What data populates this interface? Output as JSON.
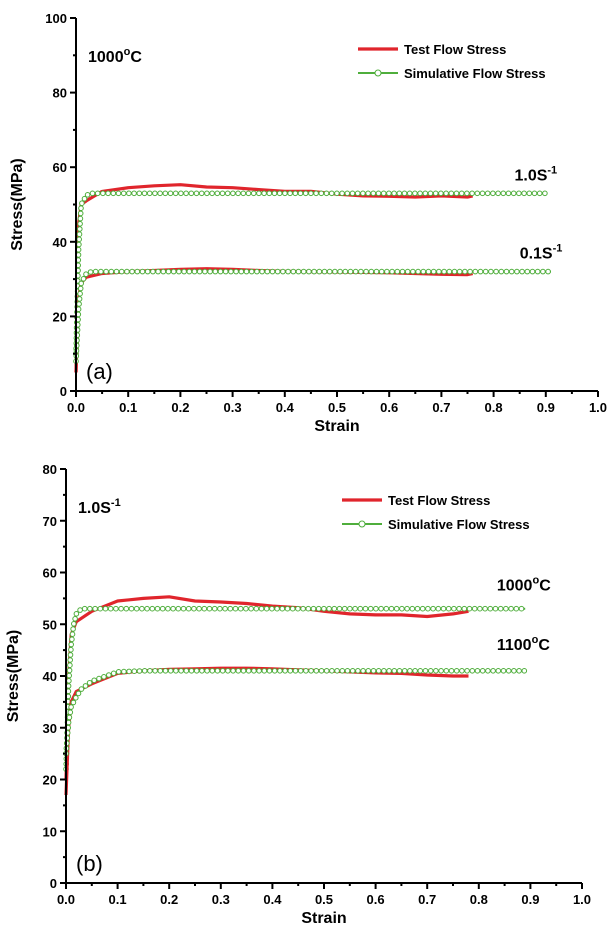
{
  "chart_data": [
    {
      "type": "line",
      "panel_label": "(a)",
      "condition": {
        "main": "1000",
        "sup": "o",
        "tail": "C"
      },
      "xlabel": "Strain",
      "ylabel": "Stress(MPa)",
      "xlim": [
        0.0,
        1.0
      ],
      "ylim": [
        0,
        100
      ],
      "x_ticks": [
        "0.0",
        "0.1",
        "0.2",
        "0.3",
        "0.4",
        "0.5",
        "0.6",
        "0.7",
        "0.8",
        "0.9",
        "1.0"
      ],
      "y_ticks": [
        "0",
        "20",
        "40",
        "60",
        "80",
        "100"
      ],
      "legend": {
        "placement": "top-right",
        "entries": [
          "Test Flow Stress",
          "Simulative Flow Stress"
        ]
      },
      "curve_labels": [
        {
          "main": "1.0S",
          "sup": "-1",
          "x": 0.84,
          "y": 56.5
        },
        {
          "main": "0.1S",
          "sup": "-1",
          "x": 0.85,
          "y": 35.5
        }
      ],
      "series": [
        {
          "name": "Test Flow Stress",
          "x": [
            0.0,
            0.005,
            0.01,
            0.02,
            0.05,
            0.1,
            0.15,
            0.2,
            0.25,
            0.3,
            0.35,
            0.4,
            0.45,
            0.5,
            0.55,
            0.6,
            0.65,
            0.7,
            0.75,
            0.76
          ],
          "y": [
            5,
            45,
            50,
            51,
            53.5,
            54.5,
            55,
            55.3,
            54.7,
            54.5,
            54,
            53.5,
            53.5,
            52.8,
            52.3,
            52.2,
            52,
            52.3,
            52,
            52.3
          ]
        },
        {
          "name": "Simulative Flow Stress",
          "x": [
            0.0,
            0.005,
            0.01,
            0.02,
            0.03,
            0.05,
            0.1,
            0.2,
            0.3,
            0.4,
            0.5,
            0.6,
            0.7,
            0.8,
            0.9
          ],
          "y": [
            10,
            38,
            50,
            52.5,
            53,
            53,
            53,
            53,
            53,
            53,
            53,
            53,
            53,
            53,
            53
          ]
        },
        {
          "name": "Test Flow Stress",
          "x": [
            0.0,
            0.005,
            0.01,
            0.02,
            0.05,
            0.1,
            0.15,
            0.2,
            0.25,
            0.3,
            0.35,
            0.4,
            0.45,
            0.5,
            0.55,
            0.6,
            0.65,
            0.7,
            0.75,
            0.76
          ],
          "y": [
            5,
            25,
            29,
            30.5,
            31.5,
            32,
            32.3,
            32.6,
            32.8,
            32.6,
            32.3,
            32.1,
            32,
            31.9,
            31.8,
            31.7,
            31.5,
            31.3,
            31.2,
            31.5
          ]
        },
        {
          "name": "Simulative Flow Stress",
          "x": [
            0.0,
            0.005,
            0.01,
            0.02,
            0.03,
            0.05,
            0.1,
            0.2,
            0.3,
            0.4,
            0.5,
            0.6,
            0.7,
            0.8,
            0.9,
            0.91
          ],
          "y": [
            8,
            22,
            29,
            31.5,
            32,
            32,
            32,
            32,
            32,
            32,
            32,
            32,
            32,
            32,
            32,
            32
          ]
        }
      ]
    },
    {
      "type": "line",
      "panel_label": "(b)",
      "condition": {
        "main": "1.0S",
        "sup": "-1",
        "tail": ""
      },
      "xlabel": "Strain",
      "ylabel": "Stress(MPa)",
      "xlim": [
        0.0,
        1.0
      ],
      "ylim": [
        0,
        80
      ],
      "x_ticks": [
        "0.0",
        "0.1",
        "0.2",
        "0.3",
        "0.4",
        "0.5",
        "0.6",
        "0.7",
        "0.8",
        "0.9",
        "1.0"
      ],
      "y_ticks": [
        "0",
        "10",
        "20",
        "30",
        "40",
        "50",
        "60",
        "70",
        "80"
      ],
      "legend": {
        "placement": "top-right",
        "entries": [
          "Test Flow Stress",
          "Simulative Flow Stress"
        ]
      },
      "curve_labels": [
        {
          "main": "1000",
          "sup": "o",
          "tail": "C",
          "x": 0.835,
          "y": 56.5
        },
        {
          "main": "1100",
          "sup": "o",
          "tail": "C",
          "x": 0.835,
          "y": 45
        }
      ],
      "series": [
        {
          "name": "Test Flow Stress",
          "x": [
            0.0,
            0.005,
            0.01,
            0.02,
            0.05,
            0.1,
            0.15,
            0.2,
            0.25,
            0.3,
            0.35,
            0.4,
            0.45,
            0.5,
            0.55,
            0.6,
            0.65,
            0.7,
            0.75,
            0.78
          ],
          "y": [
            20,
            40,
            48,
            50.5,
            52.5,
            54.5,
            55,
            55.3,
            54.5,
            54.3,
            54,
            53.5,
            53.2,
            52.5,
            52,
            51.8,
            51.8,
            51.5,
            52,
            52.5
          ]
        },
        {
          "name": "Simulative Flow Stress",
          "x": [
            0.0,
            0.005,
            0.01,
            0.015,
            0.02,
            0.03,
            0.05,
            0.1,
            0.2,
            0.3,
            0.4,
            0.5,
            0.6,
            0.7,
            0.8,
            0.89
          ],
          "y": [
            22,
            38,
            46,
            50,
            52,
            53,
            53,
            53,
            53,
            53,
            53,
            53,
            53,
            53,
            53,
            53
          ]
        },
        {
          "name": "Test Flow Stress",
          "x": [
            0.0,
            0.005,
            0.01,
            0.02,
            0.05,
            0.1,
            0.15,
            0.2,
            0.25,
            0.3,
            0.35,
            0.4,
            0.45,
            0.5,
            0.55,
            0.6,
            0.65,
            0.7,
            0.75,
            0.78
          ],
          "y": [
            17,
            30,
            35,
            37,
            38.5,
            40.5,
            41,
            41.3,
            41.4,
            41.5,
            41.5,
            41.4,
            41.2,
            41,
            40.8,
            40.6,
            40.5,
            40.2,
            40,
            40
          ]
        },
        {
          "name": "Simulative Flow Stress",
          "x": [
            0.0,
            0.005,
            0.01,
            0.02,
            0.03,
            0.05,
            0.1,
            0.15,
            0.2,
            0.3,
            0.4,
            0.5,
            0.6,
            0.7,
            0.8,
            0.89
          ],
          "y": [
            25,
            31,
            34,
            36,
            37.5,
            39,
            40.8,
            41,
            41,
            41,
            41,
            41,
            41,
            41,
            41,
            41
          ]
        }
      ]
    }
  ]
}
